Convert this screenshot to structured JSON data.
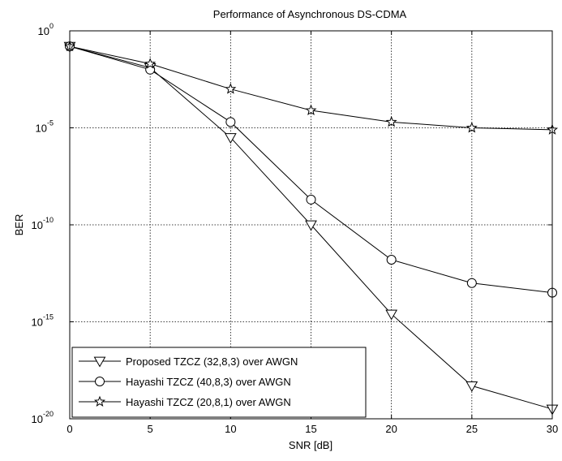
{
  "chart_data": {
    "type": "line",
    "title": "Performance of Asynchronous DS-CDMA",
    "xlabel": "SNR [dB]",
    "ylabel": "BER",
    "xlim": [
      0,
      30
    ],
    "ylim_log10": [
      -20,
      0
    ],
    "yscale": "log",
    "grid": true,
    "legend_position": "bottom-left",
    "x": [
      0,
      5,
      10,
      15,
      20,
      25,
      30
    ],
    "x_tick_labels": [
      "0",
      "5",
      "10",
      "15",
      "20",
      "25",
      "30"
    ],
    "y_tick_labels": [
      {
        "base": "10",
        "exp": "0",
        "value_log10": 0
      },
      {
        "base": "10",
        "exp": "-5",
        "value_log10": -5
      },
      {
        "base": "10",
        "exp": "-10",
        "value_log10": -10
      },
      {
        "base": "10",
        "exp": "-15",
        "value_log10": -15
      },
      {
        "base": "10",
        "exp": "-20",
        "value_log10": -20
      }
    ],
    "series": [
      {
        "name": "Proposed TZCZ (32,8,3) over AWGN",
        "marker": "triangle-down",
        "values_log10": [
          -0.8,
          -1.9,
          -5.5,
          -10.0,
          -14.6,
          -18.3,
          -19.5
        ]
      },
      {
        "name": "Hayashi TZCZ (40,8,3) over AWGN",
        "marker": "circle",
        "values_log10": [
          -0.8,
          -2.0,
          -4.7,
          -8.7,
          -11.8,
          -13.0,
          -13.5
        ]
      },
      {
        "name": "Hayashi TZCZ (20,8,1) over AWGN",
        "marker": "star",
        "values_log10": [
          -0.8,
          -1.7,
          -3.0,
          -4.1,
          -4.7,
          -5.0,
          -5.1
        ]
      }
    ]
  }
}
